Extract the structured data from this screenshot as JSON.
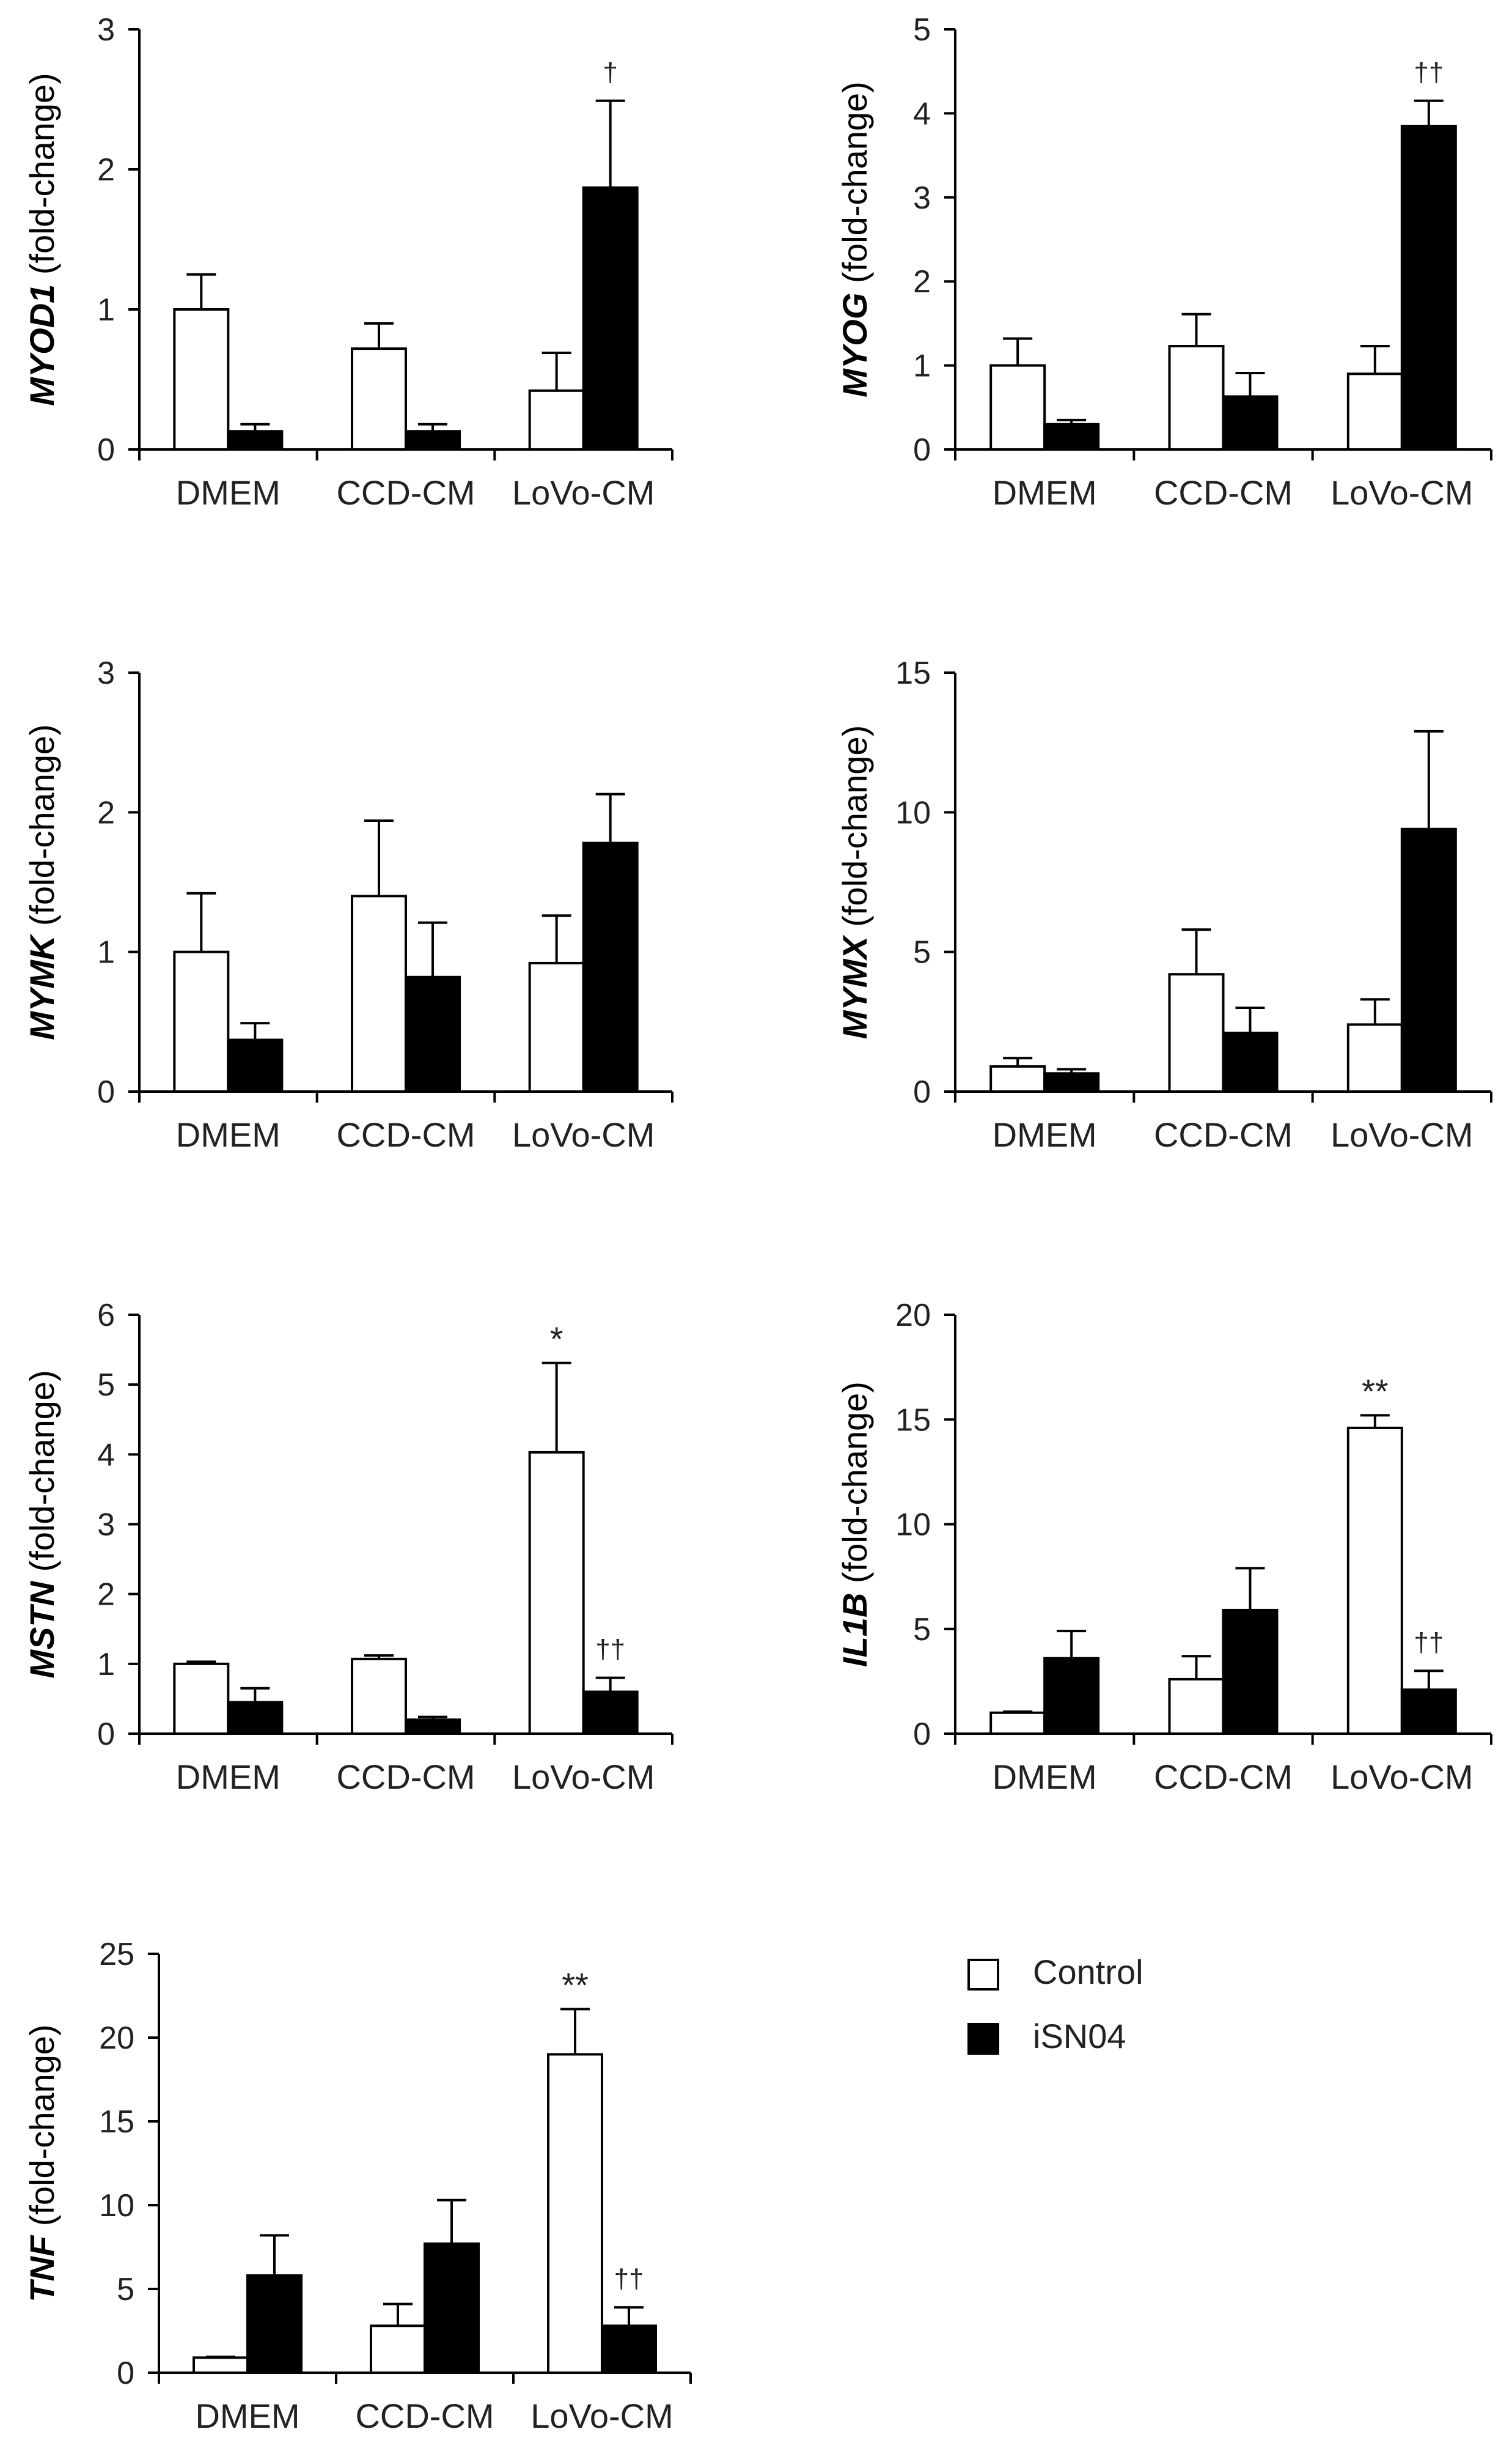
{
  "legend": {
    "items": [
      {
        "label": "Control",
        "color": "#ffffff"
      },
      {
        "label": "iSN04",
        "color": "#000000"
      }
    ]
  },
  "chart_data": [
    {
      "type": "bar",
      "gene": "MYOD1",
      "ylabel_suffix": " (fold-change)",
      "categories": [
        "DMEM",
        "CCD-CM",
        "LoVo-CM"
      ],
      "ylim": [
        0,
        3
      ],
      "yticks": [
        0,
        1,
        2,
        3
      ],
      "series": [
        {
          "name": "Control",
          "values": [
            1.0,
            0.72,
            0.42
          ],
          "errors": [
            0.25,
            0.18,
            0.27
          ]
        },
        {
          "name": "iSN04",
          "values": [
            0.13,
            0.13,
            1.87
          ],
          "errors": [
            0.05,
            0.05,
            0.62
          ]
        }
      ],
      "annotations": [
        {
          "category": 2,
          "series": 1,
          "text": "†"
        }
      ]
    },
    {
      "type": "bar",
      "gene": "MYOG",
      "ylabel_suffix": " (fold-change)",
      "categories": [
        "DMEM",
        "CCD-CM",
        "LoVo-CM"
      ],
      "ylim": [
        0,
        5
      ],
      "yticks": [
        0,
        1,
        2,
        3,
        4,
        5
      ],
      "series": [
        {
          "name": "Control",
          "values": [
            1.0,
            1.23,
            0.9
          ],
          "errors": [
            0.32,
            0.38,
            0.33
          ]
        },
        {
          "name": "iSN04",
          "values": [
            0.3,
            0.63,
            3.85
          ],
          "errors": [
            0.05,
            0.28,
            0.3
          ]
        }
      ],
      "annotations": [
        {
          "category": 2,
          "series": 1,
          "text": "††"
        }
      ]
    },
    {
      "type": "bar",
      "gene": "MYMK",
      "ylabel_suffix": " (fold-change)",
      "categories": [
        "DMEM",
        "CCD-CM",
        "LoVo-CM"
      ],
      "ylim": [
        0,
        3
      ],
      "yticks": [
        0,
        1,
        2,
        3
      ],
      "series": [
        {
          "name": "Control",
          "values": [
            1.0,
            1.4,
            0.92
          ],
          "errors": [
            0.42,
            0.54,
            0.34
          ]
        },
        {
          "name": "iSN04",
          "values": [
            0.37,
            0.82,
            1.78
          ],
          "errors": [
            0.12,
            0.39,
            0.35
          ]
        }
      ],
      "annotations": []
    },
    {
      "type": "bar",
      "gene": "MYMX",
      "ylabel_suffix": " (fold-change)",
      "categories": [
        "DMEM",
        "CCD-CM",
        "LoVo-CM"
      ],
      "ylim": [
        0,
        15
      ],
      "yticks": [
        0,
        5,
        10,
        15
      ],
      "series": [
        {
          "name": "Control",
          "values": [
            0.9,
            4.2,
            2.4
          ],
          "errors": [
            0.3,
            1.6,
            0.9
          ]
        },
        {
          "name": "iSN04",
          "values": [
            0.65,
            2.1,
            9.4
          ],
          "errors": [
            0.15,
            0.9,
            3.5
          ]
        }
      ],
      "annotations": []
    },
    {
      "type": "bar",
      "gene": "MSTN",
      "ylabel_suffix": " (fold-change)",
      "categories": [
        "DMEM",
        "CCD-CM",
        "LoVo-CM"
      ],
      "ylim": [
        0,
        6
      ],
      "yticks": [
        0,
        1,
        2,
        3,
        4,
        5,
        6
      ],
      "series": [
        {
          "name": "Control",
          "values": [
            1.0,
            1.07,
            4.03
          ],
          "errors": [
            0.03,
            0.05,
            1.28
          ]
        },
        {
          "name": "iSN04",
          "values": [
            0.45,
            0.2,
            0.6
          ],
          "errors": [
            0.2,
            0.04,
            0.2
          ]
        }
      ],
      "annotations": [
        {
          "category": 2,
          "series": 0,
          "text": "*"
        },
        {
          "category": 2,
          "series": 1,
          "text": "††"
        }
      ]
    },
    {
      "type": "bar",
      "gene": "IL1B",
      "ylabel_suffix": "  (fold-change)",
      "categories": [
        "DMEM",
        "CCD-CM",
        "LoVo-CM"
      ],
      "ylim": [
        0,
        20
      ],
      "yticks": [
        0,
        5,
        10,
        15,
        20
      ],
      "series": [
        {
          "name": "Control",
          "values": [
            1.0,
            2.6,
            14.6
          ],
          "errors": [
            0.05,
            1.1,
            0.6
          ]
        },
        {
          "name": "iSN04",
          "values": [
            3.6,
            5.9,
            2.1
          ],
          "errors": [
            1.3,
            2.0,
            0.9
          ]
        }
      ],
      "annotations": [
        {
          "category": 2,
          "series": 0,
          "text": "**"
        },
        {
          "category": 2,
          "series": 1,
          "text": "††"
        }
      ]
    },
    {
      "type": "bar",
      "gene": "TNF",
      "ylabel_suffix": "  (fold-change)",
      "categories": [
        "DMEM",
        "CCD-CM",
        "LoVo-CM"
      ],
      "ylim": [
        0,
        25
      ],
      "yticks": [
        0,
        5,
        10,
        15,
        20,
        25
      ],
      "series": [
        {
          "name": "Control",
          "values": [
            0.9,
            2.8,
            19.0
          ],
          "errors": [
            0.05,
            1.3,
            2.7
          ]
        },
        {
          "name": "iSN04",
          "values": [
            5.8,
            7.7,
            2.8
          ],
          "errors": [
            2.4,
            2.6,
            1.1
          ]
        }
      ],
      "annotations": [
        {
          "category": 2,
          "series": 0,
          "text": "**"
        },
        {
          "category": 2,
          "series": 1,
          "text": "††"
        }
      ]
    }
  ]
}
